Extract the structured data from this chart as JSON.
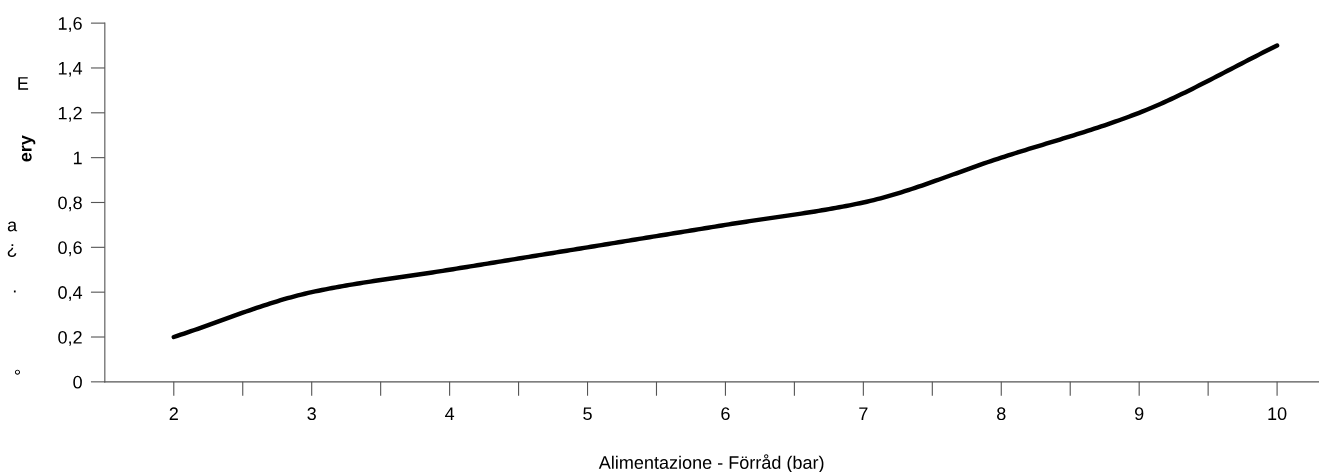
{
  "chart_data": {
    "type": "line",
    "xlabel": "Alimentazione - Förråd (bar)",
    "annotations": [
      "E",
      "ery",
      "a",
      "¿",
      "·",
      "°"
    ],
    "x": [
      2,
      3,
      4,
      5,
      6,
      7,
      8,
      9,
      10
    ],
    "series": [
      {
        "color": "#000000",
        "values": [
          0.2,
          0.4,
          0.5,
          0.6,
          0.7,
          0.8,
          1.0,
          1.2,
          1.5
        ]
      }
    ],
    "xlim": [
      1.5,
      10.3
    ],
    "xticks": [
      2,
      {
        "value": 2.5,
        "label": null
      },
      3,
      {
        "value": 3.5,
        "label": null
      },
      4,
      {
        "value": 4.5,
        "label": null
      },
      5,
      {
        "value": 5.5,
        "label": null
      },
      6,
      {
        "value": 6.5,
        "label": null
      },
      7,
      {
        "value": 7.5,
        "label": null
      },
      8,
      {
        "value": 8.5,
        "label": null
      },
      9,
      {
        "value": 9.5,
        "label": null
      },
      10
    ],
    "ylim": [
      0,
      1.6
    ],
    "yticks": [
      0,
      {
        "value": 0.2,
        "label": "0,2"
      },
      {
        "value": 0.4,
        "label": "0,4"
      },
      {
        "value": 0.6,
        "label": "0,6"
      },
      {
        "value": 0.8,
        "label": "0,8"
      },
      1,
      {
        "value": 1.2,
        "label": "1,2"
      },
      {
        "value": 1.4,
        "label": "1,4"
      },
      {
        "value": 1.6,
        "label": "1,6"
      }
    ],
    "grid": false,
    "legend": false,
    "marker": "none",
    "line_style": "solid"
  }
}
